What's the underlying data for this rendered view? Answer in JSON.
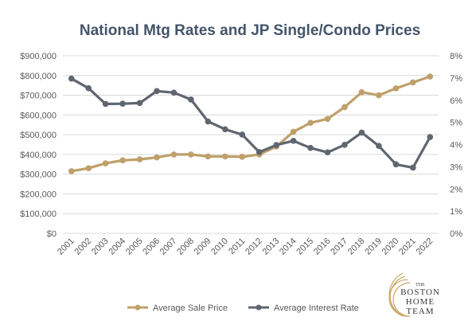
{
  "chart_data": {
    "type": "line",
    "title": "National  Mtg Rates and JP Single/Condo  Prices",
    "categories": [
      "2001",
      "2002",
      "2003",
      "2004",
      "2005",
      "2006",
      "2007",
      "2008",
      "2009",
      "2010",
      "2011",
      "2012",
      "2013",
      "2014",
      "2015",
      "2016",
      "2017",
      "2018",
      "2019",
      "2020",
      "2021",
      "2022"
    ],
    "y_left": {
      "ylim": [
        0,
        900000
      ],
      "ticks": [
        0,
        100000,
        200000,
        300000,
        400000,
        500000,
        600000,
        700000,
        800000,
        900000
      ],
      "tick_labels": [
        "$0",
        "$100,000",
        "$200,000",
        "$300,000",
        "$400,000",
        "$500,000",
        "$600,000",
        "$700,000",
        "$800,000",
        "$900,000"
      ]
    },
    "y_right": {
      "ylim": [
        0,
        8
      ],
      "ticks": [
        0,
        1,
        2,
        3,
        4,
        5,
        6,
        7,
        8
      ],
      "tick_labels": [
        "0%",
        "1%",
        "2%",
        "3%",
        "4%",
        "5%",
        "6%",
        "7%",
        "8%"
      ]
    },
    "series": [
      {
        "name": "Average Sale Price",
        "axis": "left",
        "color": "#bfa06a",
        "values": [
          315000,
          330000,
          355000,
          370000,
          375000,
          385000,
          400000,
          400000,
          390000,
          390000,
          388000,
          400000,
          440000,
          515000,
          560000,
          580000,
          640000,
          715000,
          700000,
          735000,
          765000,
          795000
        ]
      },
      {
        "name": "Average Interest Rate",
        "axis": "right",
        "color": "#5f6670",
        "values": [
          6.97,
          6.54,
          5.83,
          5.84,
          5.87,
          6.41,
          6.34,
          6.03,
          5.04,
          4.69,
          4.45,
          3.66,
          3.98,
          4.17,
          3.85,
          3.65,
          3.99,
          4.54,
          3.94,
          3.11,
          2.96,
          4.34
        ]
      }
    ],
    "grid": true,
    "legend_position": "bottom"
  },
  "logo": {
    "line1": "THE",
    "line2": "BOSTON",
    "line3": "HOME",
    "line4": "TEAM"
  }
}
